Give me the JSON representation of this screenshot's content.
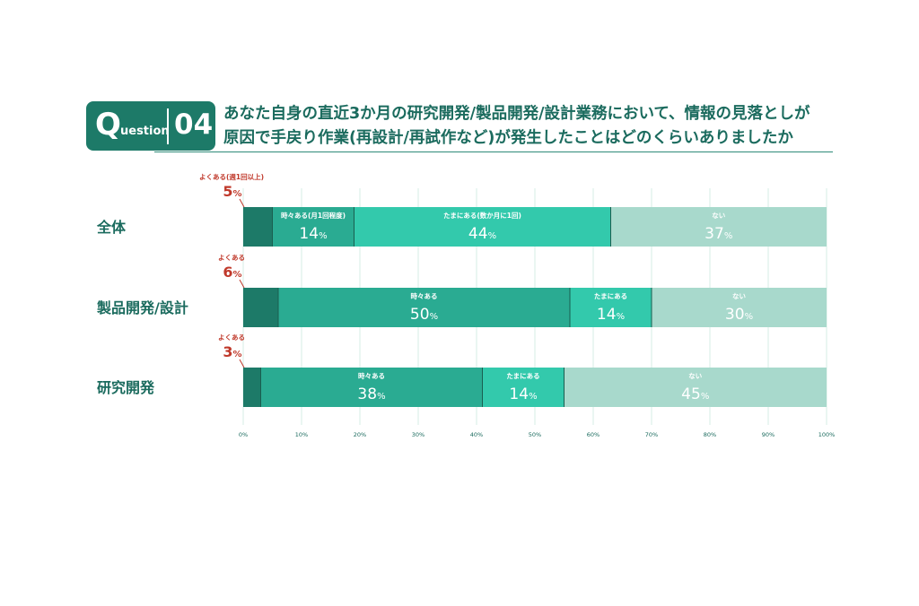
{
  "question": {
    "prefix_letter": "Q",
    "prefix_rest": "uestion",
    "number": "04",
    "title_line1": "あなた自身の直近3か月の研究開発/製品開発/設計業務において、情報の見落としが",
    "title_line2": "原因で手戻り作業(再設計/再試作など)が発生したことはどのくらいありましたか"
  },
  "colors": {
    "dark": "#1d7a68",
    "mid": "#2aab92",
    "light": "#33c9ac",
    "pale": "#a8d9cc",
    "callout": "#c0392b",
    "grid": "#d6ece6"
  },
  "chart_data": {
    "type": "bar",
    "orientation": "horizontal-stacked-100",
    "xlim": [
      0,
      100
    ],
    "ticks": [
      "0%",
      "10%",
      "20%",
      "30%",
      "40%",
      "50%",
      "60%",
      "70%",
      "80%",
      "90%",
      "100%"
    ],
    "unit": "%",
    "rows": [
      {
        "category": "全体",
        "segments": [
          {
            "name": "よくある",
            "label": "よくある(週1回以上)",
            "value": 5,
            "color": "dark",
            "callout": true
          },
          {
            "name": "時々ある",
            "label": "時々ある(月1回程度)",
            "value": 14,
            "color": "mid"
          },
          {
            "name": "たまにある",
            "label": "たまにある(数か月に1回)",
            "value": 44,
            "color": "light"
          },
          {
            "name": "ない",
            "label": "ない",
            "value": 37,
            "color": "pale"
          }
        ]
      },
      {
        "category": "製品開発/設計",
        "segments": [
          {
            "name": "よくある",
            "label": "よくある",
            "value": 6,
            "color": "dark",
            "callout": true
          },
          {
            "name": "時々ある",
            "label": "時々ある",
            "value": 50,
            "color": "mid"
          },
          {
            "name": "たまにある",
            "label": "たまにある",
            "value": 14,
            "color": "light"
          },
          {
            "name": "ない",
            "label": "ない",
            "value": 30,
            "color": "pale"
          }
        ]
      },
      {
        "category": "研究開発",
        "segments": [
          {
            "name": "よくある",
            "label": "よくある",
            "value": 3,
            "color": "dark",
            "callout": true
          },
          {
            "name": "時々ある",
            "label": "時々ある",
            "value": 38,
            "color": "mid"
          },
          {
            "name": "たまにある",
            "label": "たまにある",
            "value": 14,
            "color": "light"
          },
          {
            "name": "ない",
            "label": "ない",
            "value": 45,
            "color": "pale"
          }
        ]
      }
    ]
  }
}
